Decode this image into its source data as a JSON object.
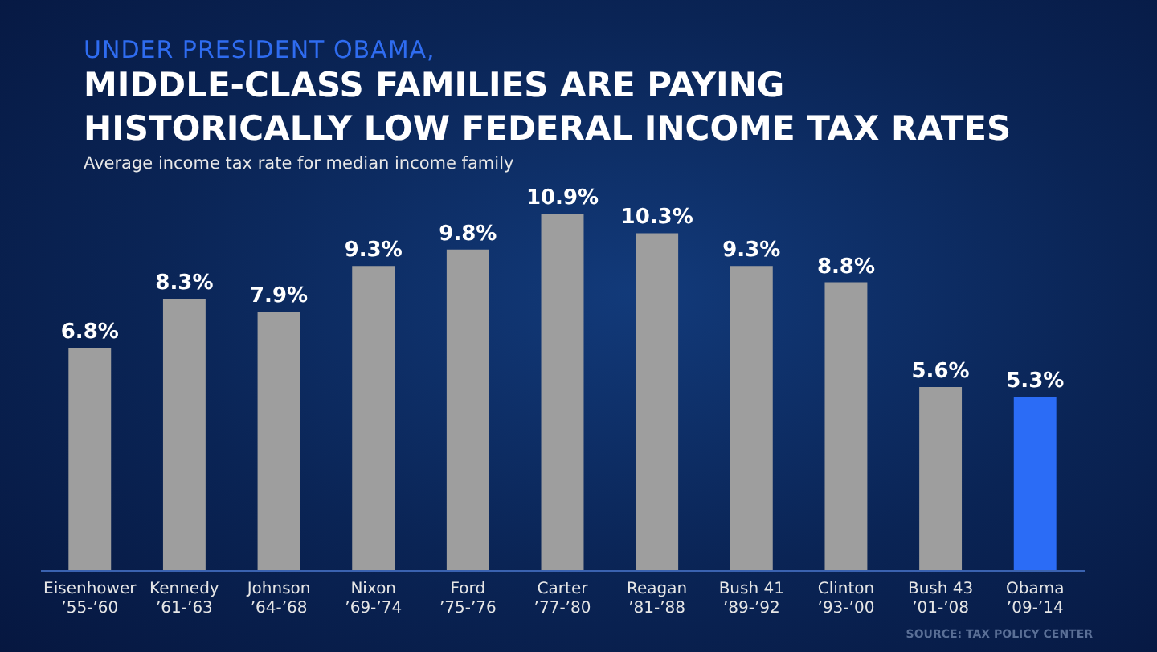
{
  "chart_data": {
    "type": "bar",
    "title": "MIDDLE-CLASS FAMILIES ARE PAYING HISTORICALLY LOW FEDERAL INCOME TAX RATES",
    "subtitle": "Average income tax rate for median income family",
    "annotations": [
      "UNDER PRESIDENT OBAMA,",
      "SOURCE: TAX POLICY CENTER"
    ],
    "categories": [
      "Eisenhower\n’55-’60",
      "Kennedy\n’61-’63",
      "Johnson\n’64-’68",
      "Nixon\n’69-’74",
      "Ford\n’75-’76",
      "Carter\n’77-’80",
      "Reagan\n’81-’88",
      "Bush 41\n’89-’92",
      "Clinton\n’93-’00",
      "Bush 43\n’01-’08",
      "Obama\n’09-’14"
    ],
    "values": [
      6.8,
      8.3,
      7.9,
      9.3,
      9.8,
      10.9,
      10.3,
      9.3,
      8.8,
      5.6,
      5.3
    ],
    "colors": [
      "#9e9e9e",
      "#9e9e9e",
      "#9e9e9e",
      "#9e9e9e",
      "#9e9e9e",
      "#9e9e9e",
      "#9e9e9e",
      "#9e9e9e",
      "#9e9e9e",
      "#9e9e9e",
      "#2b6cf6"
    ],
    "value_labels": [
      "6.8%",
      "8.3%",
      "7.9%",
      "9.3%",
      "9.8%",
      "10.9%",
      "10.3%",
      "9.3%",
      "8.8%",
      "5.6%",
      "5.3%"
    ]
  }
}
